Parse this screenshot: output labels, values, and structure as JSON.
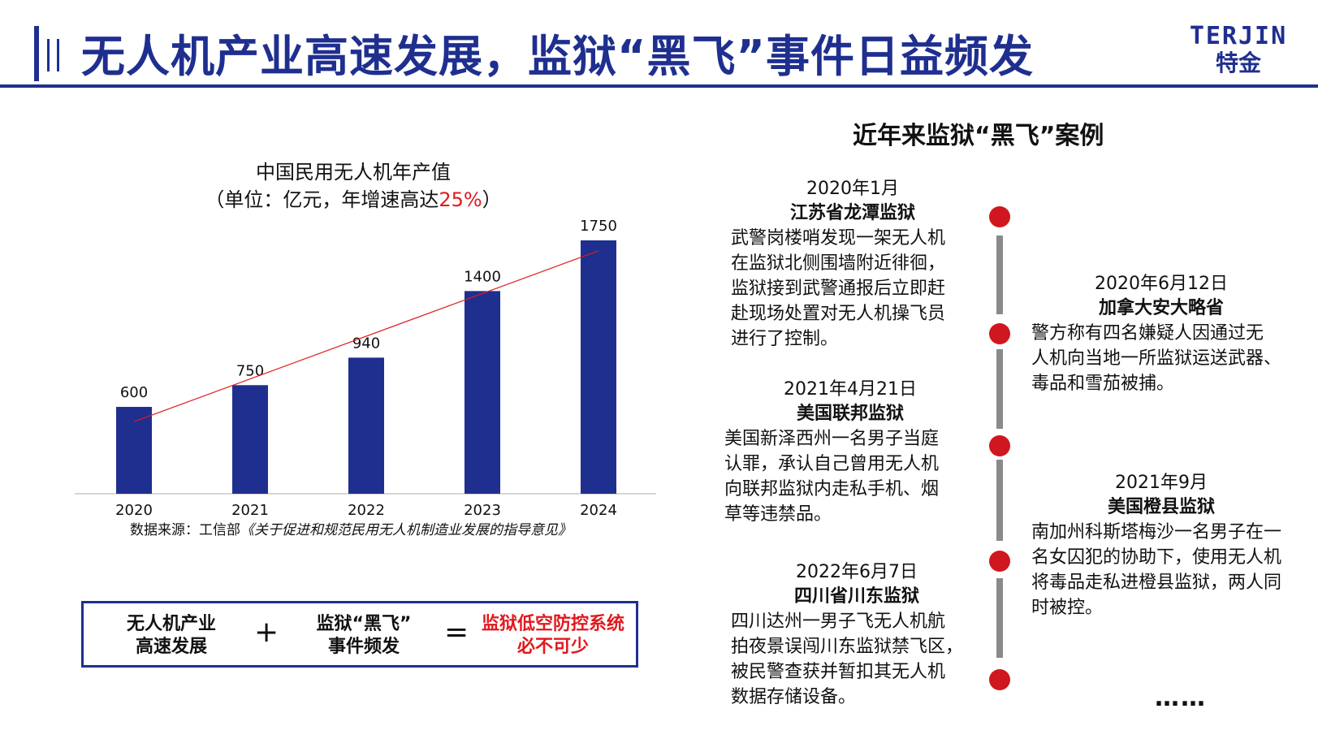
{
  "header": {
    "title": "无人机产业高速发展，监狱“黑飞”事件日益频发",
    "logo_en": "TERJIN",
    "logo_cn": "特金"
  },
  "chart": {
    "title": "中国民用无人机年产值",
    "subtitle_prefix": "（单位：亿元，年增速高达",
    "subtitle_highlight": "25%",
    "subtitle_suffix": "）",
    "source_prefix": "数据来源：工信部",
    "source_doc": "《关于促进和规范民用无人机制造业发展的指导意见》"
  },
  "chart_data": {
    "type": "bar",
    "categories": [
      "2020",
      "2021",
      "2022",
      "2023",
      "2024"
    ],
    "values": [
      600,
      750,
      940,
      1400,
      1750
    ],
    "title": "中国民用无人机年产值",
    "subtitle": "（单位：亿元，年增速高达25%）",
    "ylim": [
      0,
      1800
    ],
    "trendline": true,
    "colors": {
      "bar": "#1f2f8f",
      "trend": "#e0191e"
    }
  },
  "equation": {
    "term1_line1": "无人机产业",
    "term1_line2": "高速发展",
    "plus": "+",
    "term2_line1": "监狱“黑飞”",
    "term2_line2": "事件频发",
    "equals": "=",
    "result_line1": "监狱低空防控系统",
    "result_line2": "必不可少"
  },
  "cases": {
    "title": "近年来监狱“黑飞”案例",
    "left": [
      {
        "date": "2020年1月",
        "place": "江苏省龙潭监狱",
        "lines": [
          "武警岗楼哨发现一架无人机",
          "在监狱北侧围墙附近徘徊，",
          "监狱接到武警通报后立即赶",
          "赴现场处置对无人机操飞员",
          "进行了控制。"
        ]
      },
      {
        "date": "2021年4月21日",
        "place": "美国联邦监狱",
        "lines": [
          "美国新泽西州一名男子当庭",
          "认罪，承认自己曾用无人机",
          "向联邦监狱内走私手机、烟",
          "草等违禁品。"
        ]
      },
      {
        "date": "2022年6月7日",
        "place": "四川省川东监狱",
        "lines": [
          "四川达州一男子飞无人机航",
          "拍夜景误闯川东监狱禁飞区，",
          "被民警查获并暂扣其无人机",
          "数据存储设备。"
        ]
      }
    ],
    "right": [
      {
        "date": "2020年6月12日",
        "place": "加拿大安大略省",
        "lines": [
          "警方称有四名嫌疑人因通过无",
          "人机向当地一所监狱运送武器、",
          "毒品和雪茄被捕。"
        ]
      },
      {
        "date": "2021年9月",
        "place": "美国橙县监狱",
        "lines": [
          "南加州科斯塔梅沙一名男子在一",
          "名女囚犯的协助下，使用无人机",
          "将毒品走私进橙县监狱，两人同",
          "时被控。"
        ]
      }
    ],
    "ellipsis": "……"
  }
}
